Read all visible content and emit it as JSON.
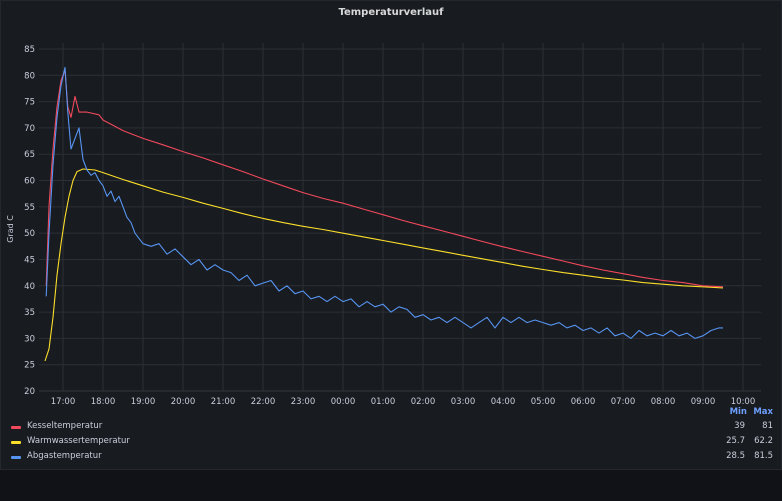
{
  "panel": {
    "title": "Temperaturverlauf"
  },
  "legend": {
    "min_header": "Min",
    "max_header": "Max"
  },
  "chart_data": {
    "type": "line",
    "title": "Temperaturverlauf",
    "ylabel": "Grad C",
    "xlabel": "",
    "ylim": [
      20,
      85
    ],
    "yticks": [
      20,
      25,
      30,
      35,
      40,
      45,
      50,
      55,
      60,
      65,
      70,
      75,
      80,
      85
    ],
    "xlim": [
      16.5,
      10.5
    ],
    "xticks": [
      "17:00",
      "18:00",
      "19:00",
      "20:00",
      "21:00",
      "22:00",
      "23:00",
      "00:00",
      "01:00",
      "02:00",
      "03:00",
      "04:00",
      "05:00",
      "06:00",
      "07:00",
      "08:00",
      "09:00",
      "10:00"
    ],
    "grid": true,
    "legend_position": "bottom",
    "series": [
      {
        "name": "Kesseltemperatur",
        "color": "#f2495c",
        "min": "39",
        "max": "81",
        "points": [
          [
            16.58,
            40
          ],
          [
            16.65,
            55
          ],
          [
            16.75,
            66
          ],
          [
            16.85,
            74
          ],
          [
            16.95,
            79
          ],
          [
            17.05,
            81
          ],
          [
            17.12,
            74
          ],
          [
            17.2,
            72
          ],
          [
            17.3,
            76
          ],
          [
            17.4,
            73
          ],
          [
            17.6,
            73
          ],
          [
            17.9,
            72.5
          ],
          [
            18.0,
            71.5
          ],
          [
            18.5,
            69.5
          ],
          [
            19.0,
            68
          ],
          [
            19.5,
            66.8
          ],
          [
            20.0,
            65.5
          ],
          [
            20.5,
            64.3
          ],
          [
            21.0,
            63
          ],
          [
            21.5,
            61.7
          ],
          [
            22.0,
            60.3
          ],
          [
            22.5,
            59
          ],
          [
            23.0,
            57.7
          ],
          [
            23.5,
            56.6
          ],
          [
            24.0,
            55.7
          ],
          [
            24.5,
            54.6
          ],
          [
            25.0,
            53.5
          ],
          [
            25.5,
            52.4
          ],
          [
            26.0,
            51.4
          ],
          [
            26.5,
            50.4
          ],
          [
            27.0,
            49.4
          ],
          [
            27.5,
            48.4
          ],
          [
            28.0,
            47.4
          ],
          [
            28.5,
            46.5
          ],
          [
            29.0,
            45.6
          ],
          [
            29.5,
            44.7
          ],
          [
            30.0,
            43.8
          ],
          [
            30.5,
            43
          ],
          [
            31.0,
            42.3
          ],
          [
            31.5,
            41.6
          ],
          [
            32.0,
            41
          ],
          [
            32.5,
            40.6
          ],
          [
            33.0,
            40
          ],
          [
            33.5,
            39.8
          ]
        ]
      },
      {
        "name": "Warmwassertemperatur",
        "color": "#fade2a",
        "min": "25.7",
        "max": "62.2",
        "points": [
          [
            16.55,
            25.7
          ],
          [
            16.65,
            28
          ],
          [
            16.75,
            34
          ],
          [
            16.85,
            42
          ],
          [
            16.95,
            48
          ],
          [
            17.05,
            53
          ],
          [
            17.15,
            57
          ],
          [
            17.25,
            60
          ],
          [
            17.35,
            61.7
          ],
          [
            17.5,
            62.2
          ],
          [
            17.8,
            62
          ],
          [
            18.0,
            61.5
          ],
          [
            18.5,
            60.2
          ],
          [
            19.0,
            59
          ],
          [
            19.5,
            57.8
          ],
          [
            20.0,
            56.8
          ],
          [
            20.5,
            55.7
          ],
          [
            21.0,
            54.7
          ],
          [
            21.5,
            53.7
          ],
          [
            22.0,
            52.8
          ],
          [
            22.5,
            52
          ],
          [
            23.0,
            51.3
          ],
          [
            23.5,
            50.7
          ],
          [
            24.0,
            50
          ],
          [
            24.5,
            49.3
          ],
          [
            25.0,
            48.6
          ],
          [
            25.5,
            47.9
          ],
          [
            26.0,
            47.2
          ],
          [
            26.5,
            46.5
          ],
          [
            27.0,
            45.8
          ],
          [
            27.5,
            45.1
          ],
          [
            28.0,
            44.4
          ],
          [
            28.5,
            43.7
          ],
          [
            29.0,
            43.1
          ],
          [
            29.5,
            42.5
          ],
          [
            30.0,
            42
          ],
          [
            30.5,
            41.5
          ],
          [
            31.0,
            41.1
          ],
          [
            31.5,
            40.6
          ],
          [
            32.0,
            40.3
          ],
          [
            32.5,
            40
          ],
          [
            33.0,
            39.8
          ],
          [
            33.5,
            39.6
          ]
        ]
      },
      {
        "name": "Abgastemperatur",
        "color": "#5794f2",
        "min": "28.5",
        "max": "81.5",
        "points": [
          [
            16.58,
            38
          ],
          [
            16.65,
            50
          ],
          [
            16.75,
            63
          ],
          [
            16.85,
            72
          ],
          [
            16.95,
            78
          ],
          [
            17.05,
            81.5
          ],
          [
            17.12,
            73
          ],
          [
            17.2,
            66
          ],
          [
            17.3,
            68
          ],
          [
            17.4,
            70
          ],
          [
            17.5,
            64
          ],
          [
            17.6,
            62
          ],
          [
            17.7,
            61
          ],
          [
            17.8,
            61.5
          ],
          [
            17.9,
            60
          ],
          [
            18.0,
            59
          ],
          [
            18.1,
            57
          ],
          [
            18.2,
            58
          ],
          [
            18.3,
            56
          ],
          [
            18.4,
            57
          ],
          [
            18.5,
            55
          ],
          [
            18.6,
            53
          ],
          [
            18.7,
            52
          ],
          [
            18.8,
            50
          ],
          [
            18.9,
            49
          ],
          [
            19.0,
            48
          ],
          [
            19.2,
            47.5
          ],
          [
            19.4,
            48
          ],
          [
            19.6,
            46
          ],
          [
            19.8,
            47
          ],
          [
            20.0,
            45.5
          ],
          [
            20.2,
            44
          ],
          [
            20.4,
            45
          ],
          [
            20.6,
            43
          ],
          [
            20.8,
            44
          ],
          [
            21.0,
            43
          ],
          [
            21.2,
            42.5
          ],
          [
            21.4,
            41
          ],
          [
            21.6,
            42
          ],
          [
            21.8,
            40
          ],
          [
            22.0,
            40.5
          ],
          [
            22.2,
            41
          ],
          [
            22.4,
            39
          ],
          [
            22.6,
            40
          ],
          [
            22.8,
            38.5
          ],
          [
            23.0,
            39
          ],
          [
            23.2,
            37.5
          ],
          [
            23.4,
            38
          ],
          [
            23.6,
            37
          ],
          [
            23.8,
            38
          ],
          [
            24.0,
            37
          ],
          [
            24.2,
            37.5
          ],
          [
            24.4,
            36
          ],
          [
            24.6,
            37
          ],
          [
            24.8,
            36
          ],
          [
            25.0,
            36.5
          ],
          [
            25.2,
            35
          ],
          [
            25.4,
            36
          ],
          [
            25.6,
            35.5
          ],
          [
            25.8,
            34
          ],
          [
            26.0,
            34.5
          ],
          [
            26.2,
            33.5
          ],
          [
            26.4,
            34
          ],
          [
            26.6,
            33
          ],
          [
            26.8,
            34
          ],
          [
            27.0,
            33
          ],
          [
            27.2,
            32
          ],
          [
            27.4,
            33
          ],
          [
            27.6,
            34
          ],
          [
            27.8,
            32
          ],
          [
            28.0,
            34
          ],
          [
            28.2,
            33
          ],
          [
            28.4,
            34
          ],
          [
            28.6,
            33
          ],
          [
            28.8,
            33.5
          ],
          [
            29.0,
            33
          ],
          [
            29.2,
            32.5
          ],
          [
            29.4,
            33
          ],
          [
            29.6,
            32
          ],
          [
            29.8,
            32.5
          ],
          [
            30.0,
            31.5
          ],
          [
            30.2,
            32
          ],
          [
            30.4,
            31
          ],
          [
            30.6,
            32
          ],
          [
            30.8,
            30.5
          ],
          [
            31.0,
            31
          ],
          [
            31.2,
            30
          ],
          [
            31.4,
            31.5
          ],
          [
            31.6,
            30.5
          ],
          [
            31.8,
            31
          ],
          [
            32.0,
            30.5
          ],
          [
            32.2,
            31.5
          ],
          [
            32.4,
            30.5
          ],
          [
            32.6,
            31
          ],
          [
            32.8,
            30
          ],
          [
            33.0,
            30.5
          ],
          [
            33.2,
            31.5
          ],
          [
            33.4,
            32
          ],
          [
            33.5,
            32
          ]
        ]
      }
    ]
  }
}
